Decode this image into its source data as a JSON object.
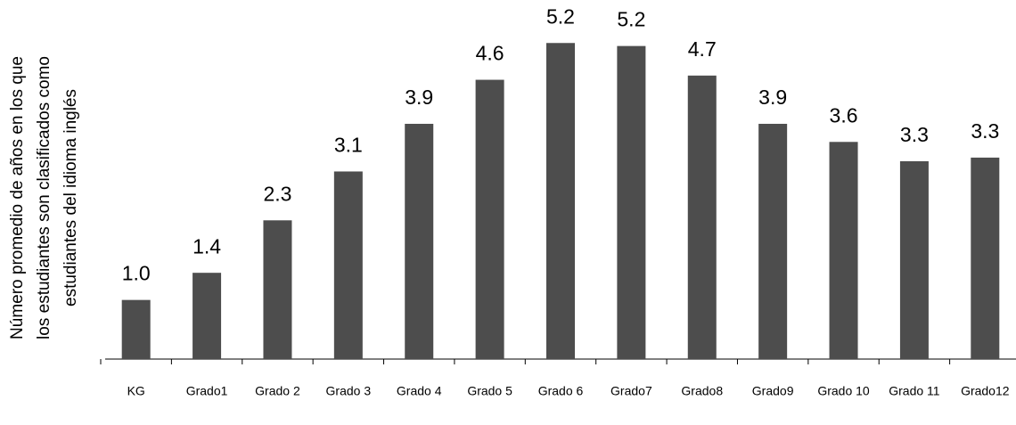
{
  "chart_data": {
    "type": "bar",
    "y_label": [
      "Número promedio de años en los que",
      "los estudiantes son clasificados como",
      "estudiantes del idioma inglés"
    ],
    "categories": [
      "KG",
      "Grado1",
      "Grado 2",
      "Grado 3",
      "Grado 4",
      "Grado 5",
      "Grado 6",
      "Grado7",
      "Grado8",
      "Grado9",
      "Grado 10",
      "Grado 11",
      "Grado12"
    ],
    "values": [
      0.98,
      1.43,
      2.3,
      3.11,
      3.9,
      4.63,
      5.24,
      5.19,
      4.7,
      3.9,
      3.6,
      3.28,
      3.34
    ],
    "value_labels": [
      "1.0",
      "1.4",
      "2.3",
      "3.1",
      "3.9",
      "4.6",
      "5.2",
      "5.2",
      "4.7",
      "3.9",
      "3.6",
      "3.3",
      "3.3"
    ],
    "color": "#4d4d4d",
    "ylim": [
      0,
      6
    ]
  }
}
